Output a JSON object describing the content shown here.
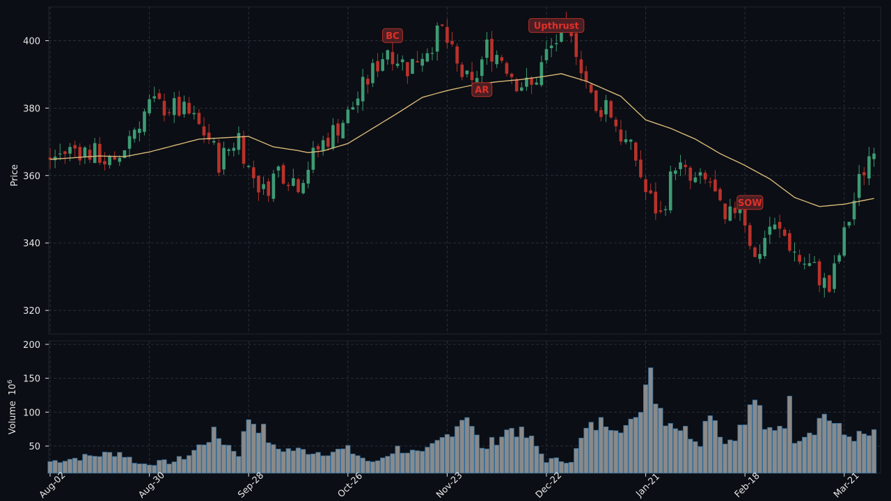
{
  "chart_data": {
    "type": "candlestick",
    "price_panel": {
      "ylabel": "Price",
      "ylim": [
        313,
        410
      ],
      "yticks": [
        320,
        340,
        360,
        380,
        400
      ],
      "grid": true
    },
    "volume_panel": {
      "ylabel": "Volume",
      "ylabel_exponent": "6",
      "ylim": [
        10,
        205
      ],
      "yticks": [
        50,
        100,
        150,
        200
      ],
      "grid": true
    },
    "x_tick_labels": [
      "Aug-02",
      "Aug-30",
      "Sep-28",
      "Oct-26",
      "Nov-23",
      "Dec-22",
      "Jan-21",
      "Feb-18",
      "Mar-21"
    ],
    "x_tick_bar_index": [
      0,
      20,
      40,
      60,
      80,
      100,
      120,
      140,
      160
    ],
    "moving_average": [
      [
        0,
        364.8
      ],
      [
        10,
        365.8
      ],
      [
        15,
        365.6
      ],
      [
        20,
        367
      ],
      [
        30,
        370.8
      ],
      [
        40,
        371.6
      ],
      [
        45,
        368.5
      ],
      [
        50,
        367.4
      ],
      [
        52,
        366.8
      ],
      [
        55,
        367.3
      ],
      [
        60,
        369.5
      ],
      [
        65,
        374
      ],
      [
        70,
        378.5
      ],
      [
        75,
        383.2
      ],
      [
        80,
        385.2
      ],
      [
        85,
        386.8
      ],
      [
        90,
        387.8
      ],
      [
        95,
        388.5
      ],
      [
        100,
        389.5
      ],
      [
        103,
        390.2
      ],
      [
        108,
        388
      ],
      [
        115,
        383.5
      ],
      [
        120,
        376.5
      ],
      [
        125,
        374
      ],
      [
        130,
        370.8
      ],
      [
        135,
        366.5
      ],
      [
        140,
        363
      ],
      [
        145,
        359
      ],
      [
        150,
        353.5
      ],
      [
        155,
        350.8
      ],
      [
        160,
        351.5
      ],
      [
        166,
        353.2
      ]
    ],
    "candle_anchors": [
      [
        0,
        365
      ],
      [
        5,
        368
      ],
      [
        10,
        366
      ],
      [
        13,
        362
      ],
      [
        16,
        372
      ],
      [
        20,
        381
      ],
      [
        25,
        380
      ],
      [
        28,
        378
      ],
      [
        32,
        371
      ],
      [
        34,
        364
      ],
      [
        38,
        372
      ],
      [
        40,
        362
      ],
      [
        43,
        355
      ],
      [
        46,
        362
      ],
      [
        50,
        358
      ],
      [
        54,
        368
      ],
      [
        60,
        378
      ],
      [
        63,
        386
      ],
      [
        68,
        398
      ],
      [
        72,
        392
      ],
      [
        76,
        398
      ],
      [
        79,
        403
      ],
      [
        82,
        392
      ],
      [
        85,
        386
      ],
      [
        88,
        398
      ],
      [
        91,
        395
      ],
      [
        94,
        388
      ],
      [
        97,
        386
      ],
      [
        100,
        396
      ],
      [
        103,
        402
      ],
      [
        106,
        398
      ],
      [
        110,
        378
      ],
      [
        112,
        382
      ],
      [
        115,
        372
      ],
      [
        118,
        365
      ],
      [
        120,
        355
      ],
      [
        123,
        348
      ],
      [
        126,
        364
      ],
      [
        129,
        358
      ],
      [
        133,
        358
      ],
      [
        136,
        345
      ],
      [
        139,
        353
      ],
      [
        142,
        335
      ],
      [
        145,
        345
      ],
      [
        148,
        342
      ],
      [
        151,
        335
      ],
      [
        154,
        332
      ],
      [
        157,
        326
      ],
      [
        160,
        342
      ],
      [
        163,
        358
      ],
      [
        166,
        370
      ]
    ],
    "volume_anchors": [
      [
        0,
        28
      ],
      [
        8,
        36
      ],
      [
        14,
        42
      ],
      [
        18,
        24
      ],
      [
        25,
        28
      ],
      [
        28,
        38
      ],
      [
        33,
        70
      ],
      [
        38,
        40
      ],
      [
        40,
        96
      ],
      [
        43,
        75
      ],
      [
        45,
        48
      ],
      [
        55,
        42
      ],
      [
        60,
        46
      ],
      [
        65,
        25
      ],
      [
        70,
        48
      ],
      [
        75,
        38
      ],
      [
        80,
        68
      ],
      [
        84,
        104
      ],
      [
        87,
        45
      ],
      [
        93,
        80
      ],
      [
        97,
        60
      ],
      [
        100,
        30
      ],
      [
        105,
        30
      ],
      [
        108,
        75
      ],
      [
        112,
        90
      ],
      [
        116,
        82
      ],
      [
        118,
        86
      ],
      [
        120,
        145
      ],
      [
        121,
        198
      ],
      [
        122,
        124
      ],
      [
        124,
        95
      ],
      [
        127,
        80
      ],
      [
        131,
        60
      ],
      [
        133,
        112
      ],
      [
        136,
        55
      ],
      [
        140,
        85
      ],
      [
        142,
        128
      ],
      [
        144,
        72
      ],
      [
        148,
        90
      ],
      [
        149,
        114
      ],
      [
        150,
        64
      ],
      [
        154,
        80
      ],
      [
        156,
        102
      ],
      [
        160,
        68
      ],
      [
        163,
        66
      ],
      [
        166,
        68
      ]
    ],
    "bar_count": 167,
    "annotations": [
      {
        "label": "BC",
        "bar": 69,
        "price": 401.5
      },
      {
        "label": "AR",
        "bar": 87,
        "price": 385.5
      },
      {
        "label": "Upthrust",
        "bar": 102,
        "price": 404.5
      },
      {
        "label": "SOW",
        "bar": 141,
        "price": 352
      }
    ],
    "colors": {
      "background": "#0b0e14",
      "up": "#3d9b74",
      "down": "#b8322b",
      "moving_average": "#d8b879",
      "volume_fill": "#8a8a8a",
      "volume_edge": "#2f6fa0",
      "grid": "#2a2f38",
      "text": "#e6e6e6",
      "annotation_text": "#e0302a",
      "annotation_bg": "#4a1e22"
    }
  }
}
